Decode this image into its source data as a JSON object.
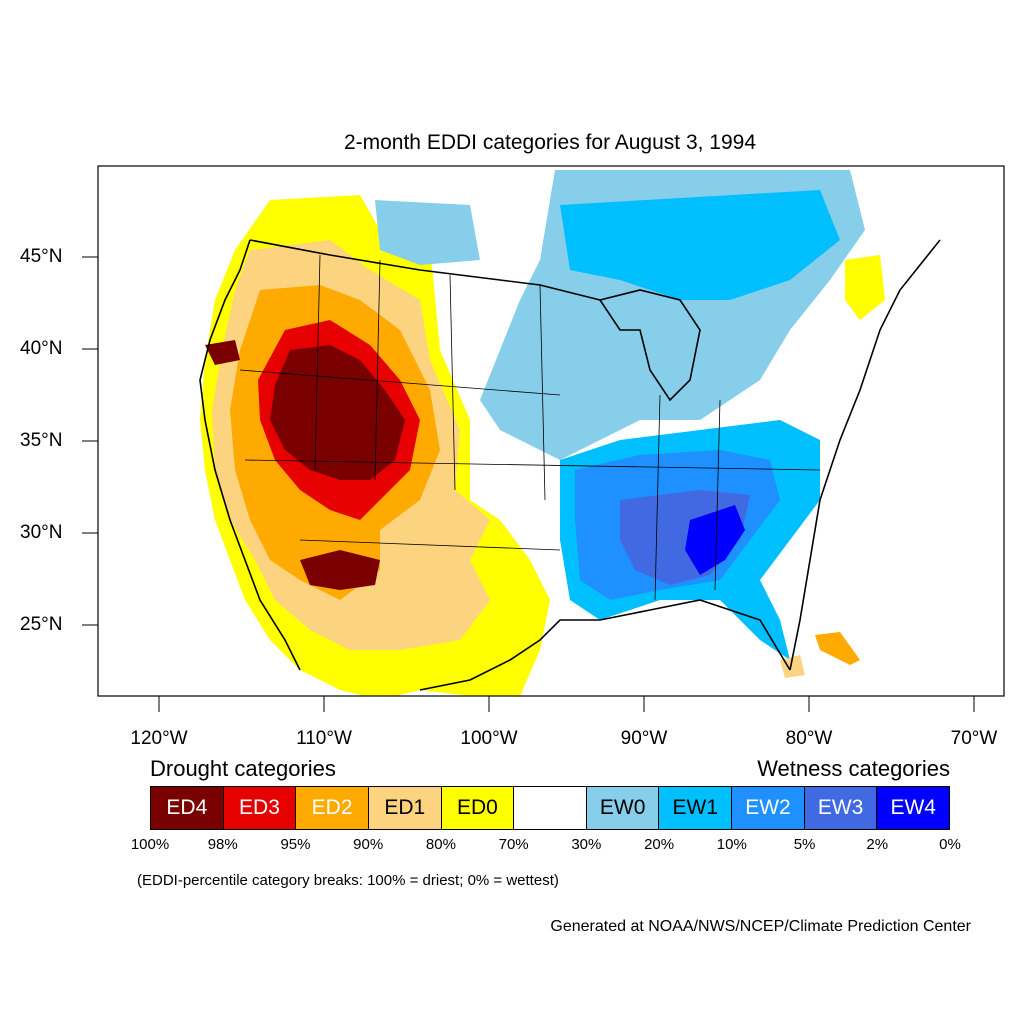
{
  "title": "2-month EDDI categories for August 3, 1994",
  "lat_labels": [
    "45°N",
    "40°N",
    "35°N",
    "30°N",
    "25°N"
  ],
  "lon_labels": [
    "120°W",
    "110°W",
    "100°W",
    "90°W",
    "80°W",
    "70°W"
  ],
  "legend": {
    "drought_heading": "Drought categories",
    "wetness_heading": "Wetness categories",
    "categories": [
      {
        "label": "ED4",
        "color": "#7a0000",
        "text_color": "#ffffff"
      },
      {
        "label": "ED3",
        "color": "#e60000",
        "text_color": "#ffffff"
      },
      {
        "label": "ED2",
        "color": "#ffaa00",
        "text_color": "#ffffff"
      },
      {
        "label": "ED1",
        "color": "#fcd37f",
        "text_color": "#000000"
      },
      {
        "label": "ED0",
        "color": "#ffff00",
        "text_color": "#000000"
      },
      {
        "label": "",
        "color": "#ffffff",
        "text_color": "#000000"
      },
      {
        "label": "EW0",
        "color": "#87ceeb",
        "text_color": "#000000"
      },
      {
        "label": "EW1",
        "color": "#00bfff",
        "text_color": "#000000"
      },
      {
        "label": "EW2",
        "color": "#1e90ff",
        "text_color": "#ffffff"
      },
      {
        "label": "EW3",
        "color": "#4169e1",
        "text_color": "#ffffff"
      },
      {
        "label": "EW4",
        "color": "#0000ff",
        "text_color": "#ffffff"
      }
    ],
    "percent_breaks": [
      "100%",
      "98%",
      "95%",
      "90%",
      "80%",
      "70%",
      "30%",
      "20%",
      "10%",
      "5%",
      "2%",
      "0%"
    ]
  },
  "note": "(EDDI-percentile category breaks: 100% = driest; 0% = wettest)",
  "credit": "Generated at NOAA/NWS/NCEP/Climate Prediction Center"
}
